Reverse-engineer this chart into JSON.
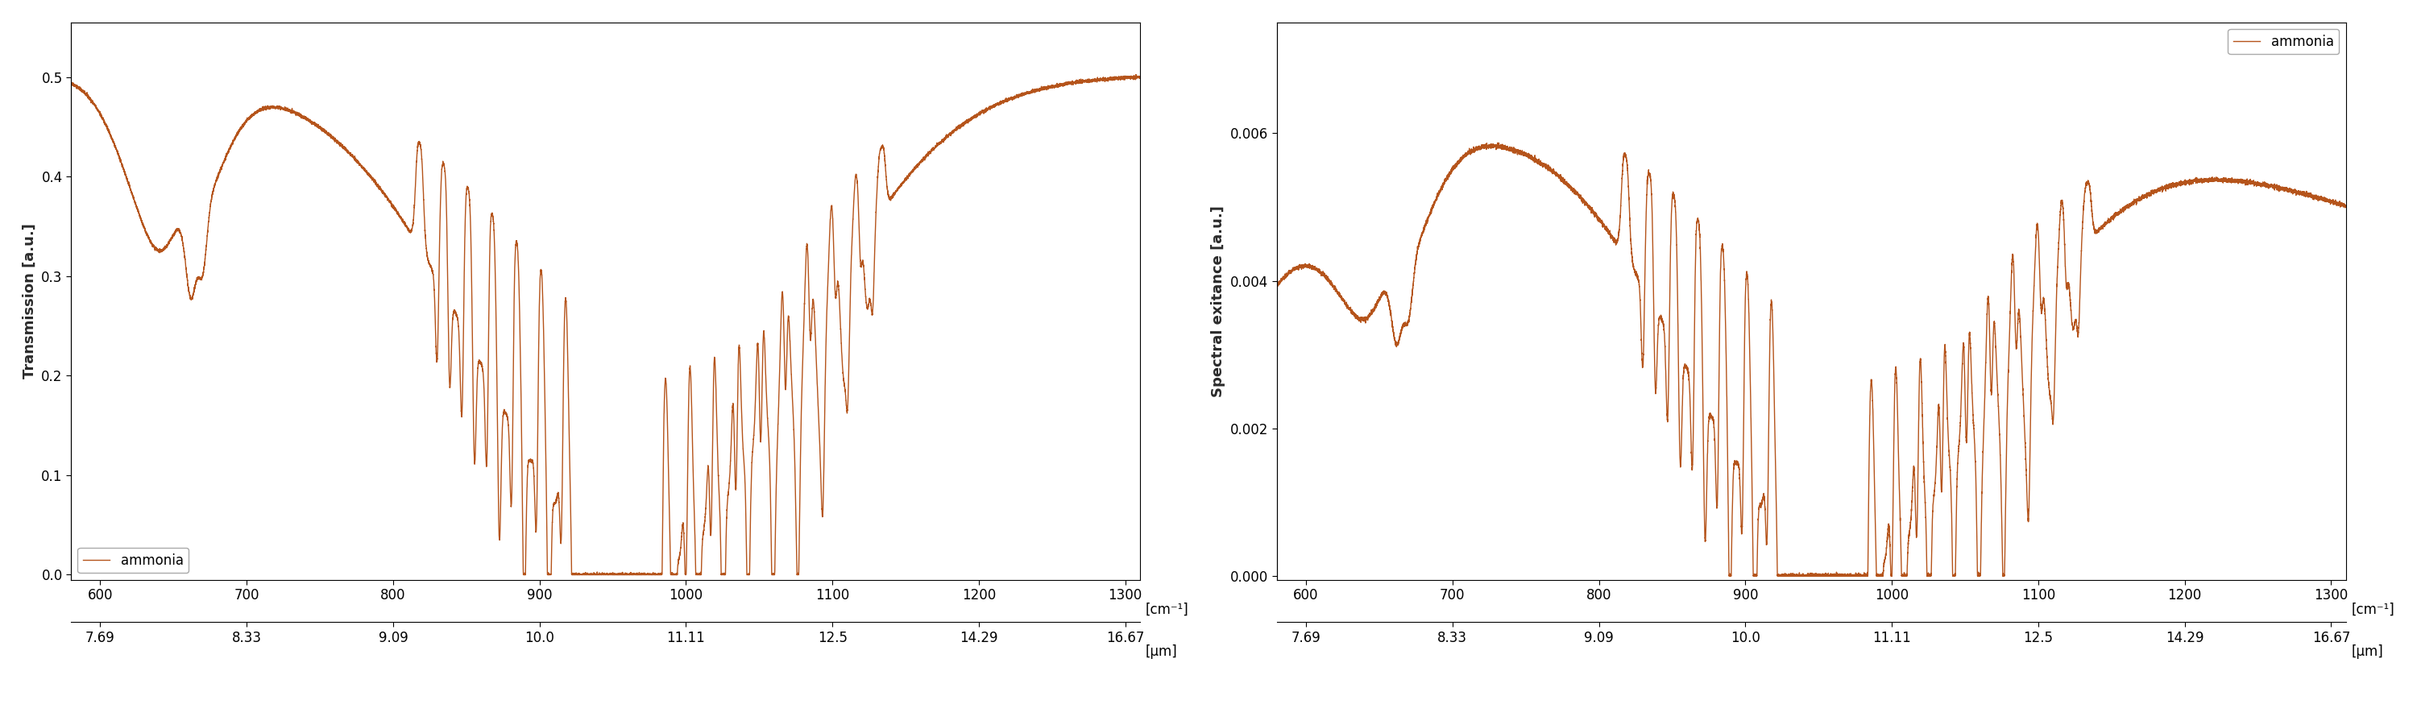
{
  "line_color": "#b5541b",
  "line_width": 1.0,
  "background_color": "#ffffff",
  "ylabel1": "Transmission [a.u.]",
  "ylabel2": "Spectral exitance [a.u.]",
  "xlabel_cm": "[cm⁻¹]",
  "xlabel_um": "[μm]",
  "legend_label": "ammonia",
  "xmin": 580,
  "xmax": 1310,
  "xticks_cm": [
    600,
    700,
    800,
    900,
    1000,
    1100,
    1200,
    1300
  ],
  "xticks_um_labels": [
    "7.69",
    "8.33",
    "9.09",
    "10.0",
    "11.11",
    "12.5",
    "14.29",
    "16.67"
  ],
  "ylim1": [
    -0.005,
    0.555
  ],
  "ylim2": [
    -5e-05,
    0.0075
  ],
  "yticks1": [
    0.0,
    0.1,
    0.2,
    0.3,
    0.4,
    0.5
  ],
  "yticks2": [
    0.0,
    0.002,
    0.004,
    0.006
  ],
  "legend1_loc": "lower left",
  "legend2_loc": "upper right"
}
